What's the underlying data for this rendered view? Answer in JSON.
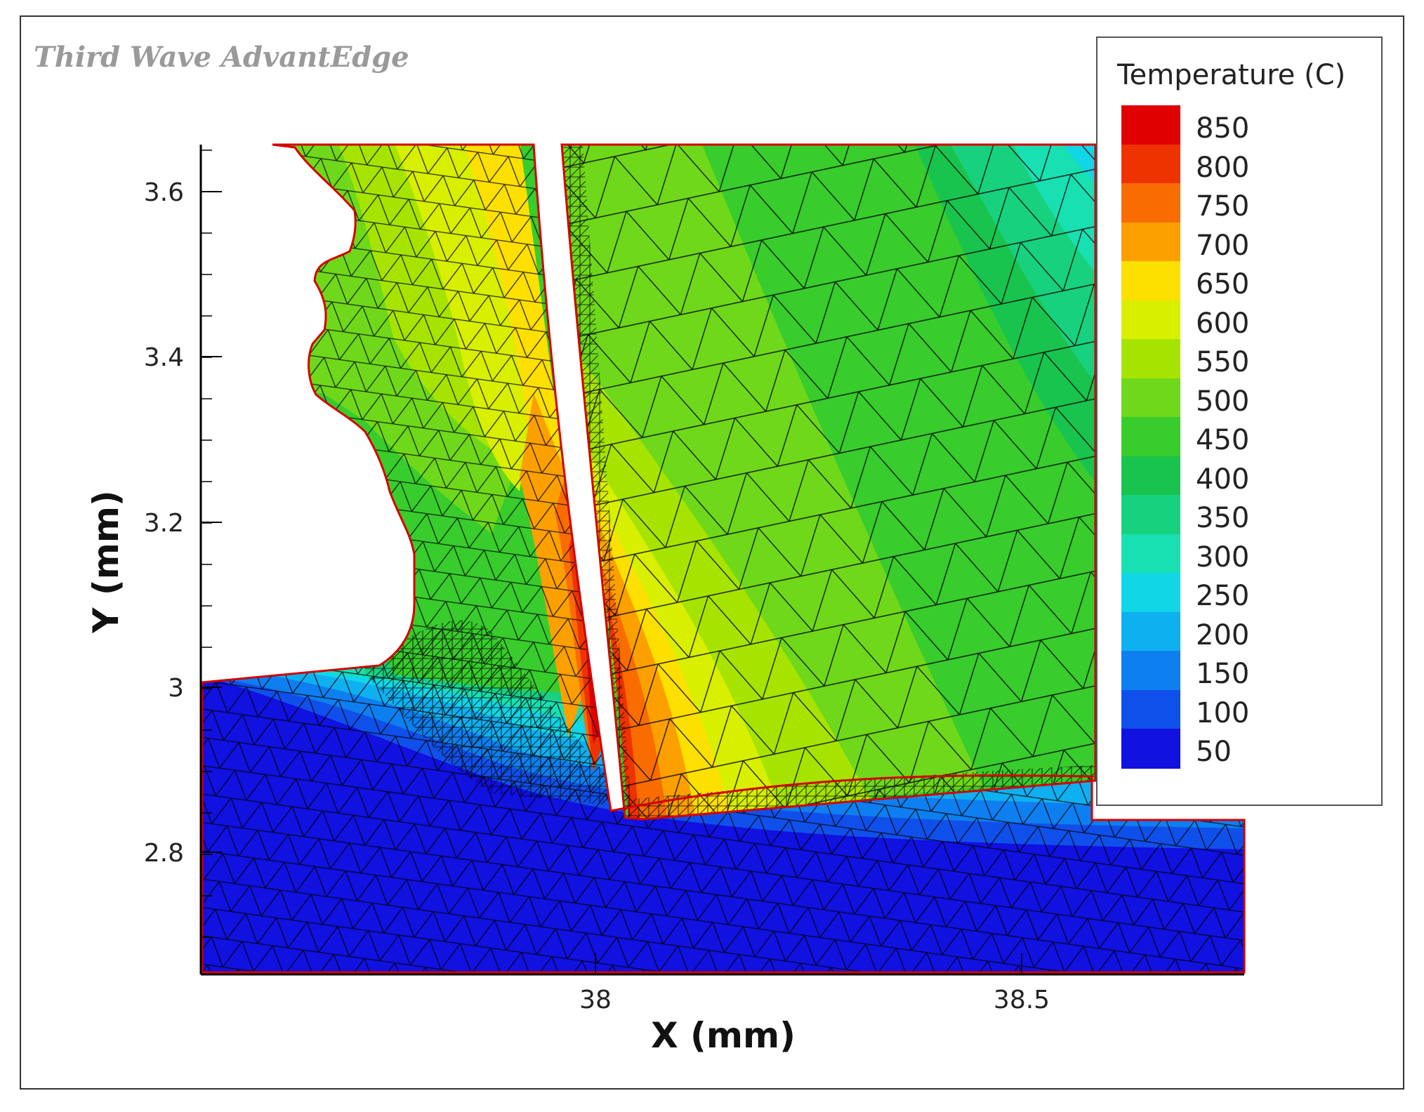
{
  "watermark": "Third Wave AdvantEdge",
  "chart_data": {
    "type": "heatmap",
    "title": "",
    "xlabel": "X (mm)",
    "ylabel": "Y (mm)",
    "x_ticks": [
      "38",
      "38.5"
    ],
    "y_ticks": [
      "3.6",
      "3.4",
      "3.2",
      "3",
      "2.8"
    ],
    "xlim": [
      37.5,
      38.8
    ],
    "ylim": [
      2.65,
      3.66
    ],
    "colorbar": {
      "title": "Temperature (C)",
      "levels": [
        850,
        800,
        750,
        700,
        650,
        600,
        550,
        500,
        450,
        400,
        350,
        300,
        250,
        200,
        150,
        100,
        50
      ],
      "colors": [
        "#e00000",
        "#ee3300",
        "#f96c00",
        "#fca000",
        "#fde000",
        "#d8ef00",
        "#a6e400",
        "#6fd81a",
        "#38cc2c",
        "#19c44e",
        "#18d17e",
        "#18e0b2",
        "#10d6e6",
        "#0fb0f0",
        "#0e7ff0",
        "#1050ea",
        "#1111e0"
      ]
    },
    "max_temperature_region": "tool tip at X ≈ 38.0 mm, Y ≈ 3.1 mm",
    "mesh": "triangular finite element mesh"
  }
}
